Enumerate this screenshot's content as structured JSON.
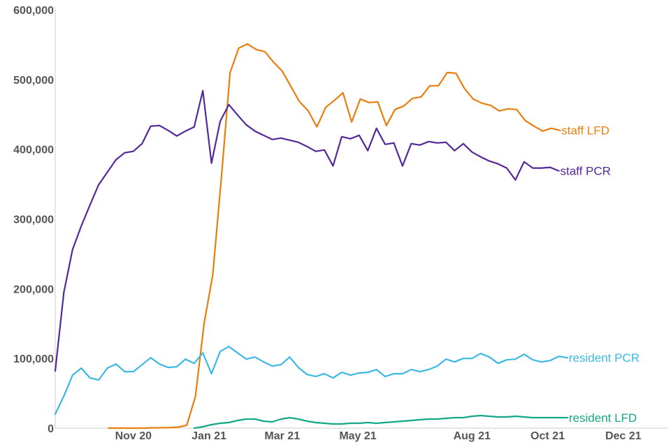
{
  "chart_data": {
    "type": "line",
    "title": "",
    "xlabel": "",
    "ylabel": "",
    "x_range": [
      "2020-08-30",
      "2021-12-31"
    ],
    "ylim": [
      0,
      600000
    ],
    "yticks": [
      {
        "value": 0,
        "label": "0"
      },
      {
        "value": 100000,
        "label": "100,000"
      },
      {
        "value": 200000,
        "label": "200,000"
      },
      {
        "value": 300000,
        "label": "300,000"
      },
      {
        "value": 400000,
        "label": "400,000"
      },
      {
        "value": 500000,
        "label": "500,000"
      },
      {
        "value": 600000,
        "label": "600,000"
      }
    ],
    "xticks": [
      {
        "date": "2020-11-01",
        "label": "Nov 20"
      },
      {
        "date": "2021-01-01",
        "label": "Jan 21"
      },
      {
        "date": "2021-03-01",
        "label": "Mar 21"
      },
      {
        "date": "2021-05-01",
        "label": "May 21"
      },
      {
        "date": "2021-08-01",
        "label": "Aug 21"
      },
      {
        "date": "2021-10-01",
        "label": "Oct 21"
      },
      {
        "date": "2021-12-01",
        "label": "Dec 21"
      }
    ],
    "grid": false,
    "legend": "direct-labels-at-line-ends",
    "series": [
      {
        "name": "staff LFD",
        "color": "#e87e0e",
        "x": [
          "2020-10-12",
          "2020-10-19",
          "2020-10-26",
          "2020-11-02",
          "2020-11-09",
          "2020-11-16",
          "2020-11-23",
          "2020-11-30",
          "2020-12-07",
          "2020-12-14",
          "2020-12-21",
          "2020-12-28",
          "2021-01-04",
          "2021-01-11",
          "2021-01-18",
          "2021-01-25",
          "2021-02-01",
          "2021-02-08",
          "2021-02-15",
          "2021-02-22",
          "2021-03-01",
          "2021-03-08",
          "2021-03-15",
          "2021-03-22",
          "2021-03-29",
          "2021-04-05",
          "2021-04-12",
          "2021-04-19",
          "2021-04-26",
          "2021-05-03",
          "2021-05-10",
          "2021-05-17",
          "2021-05-24",
          "2021-05-31",
          "2021-06-07",
          "2021-06-14",
          "2021-06-21",
          "2021-06-28",
          "2021-07-05",
          "2021-07-12",
          "2021-07-19",
          "2021-07-26",
          "2021-08-02",
          "2021-08-09",
          "2021-08-16",
          "2021-08-23",
          "2021-08-30",
          "2021-09-06",
          "2021-09-13",
          "2021-09-20",
          "2021-09-27",
          "2021-10-04",
          "2021-10-11"
        ],
        "values": [
          0,
          0,
          0,
          0,
          0,
          500,
          500,
          800,
          1500,
          4000,
          45000,
          150000,
          220000,
          360000,
          510000,
          545000,
          551000,
          543000,
          540000,
          525000,
          512000,
          490000,
          468000,
          455000,
          432000,
          460000,
          470000,
          481000,
          439000,
          472000,
          467000,
          468000,
          434000,
          457000,
          462000,
          473000,
          475000,
          491000,
          491000,
          510000,
          509000,
          487000,
          472000,
          466000,
          463000,
          455000,
          458000,
          457000,
          441000,
          433000,
          426000,
          430000,
          427000
        ]
      },
      {
        "name": "staff PCR",
        "color": "#55289a",
        "x": [
          "2020-08-30",
          "2020-09-06",
          "2020-09-13",
          "2020-09-20",
          "2020-09-27",
          "2020-10-04",
          "2020-10-11",
          "2020-10-18",
          "2020-10-25",
          "2020-11-01",
          "2020-11-08",
          "2020-11-15",
          "2020-11-22",
          "2020-11-29",
          "2020-12-06",
          "2020-12-13",
          "2020-12-20",
          "2020-12-27",
          "2021-01-03",
          "2021-01-10",
          "2021-01-17",
          "2021-01-24",
          "2021-01-31",
          "2021-02-07",
          "2021-02-14",
          "2021-02-21",
          "2021-02-28",
          "2021-03-07",
          "2021-03-14",
          "2021-03-21",
          "2021-03-28",
          "2021-04-04",
          "2021-04-11",
          "2021-04-18",
          "2021-04-25",
          "2021-05-02",
          "2021-05-09",
          "2021-05-16",
          "2021-05-23",
          "2021-05-30",
          "2021-06-06",
          "2021-06-13",
          "2021-06-20",
          "2021-06-27",
          "2021-07-04",
          "2021-07-11",
          "2021-07-18",
          "2021-07-25",
          "2021-08-01",
          "2021-08-08",
          "2021-08-15",
          "2021-08-22",
          "2021-08-29",
          "2021-09-05",
          "2021-09-12",
          "2021-09-19",
          "2021-09-26",
          "2021-10-03",
          "2021-10-10"
        ],
        "values": [
          82000,
          195000,
          256000,
          290000,
          320000,
          349000,
          367000,
          385000,
          395000,
          397000,
          408000,
          433000,
          434000,
          427000,
          419000,
          426000,
          432000,
          484000,
          380000,
          440000,
          464000,
          449000,
          435000,
          426000,
          420000,
          414000,
          416000,
          413000,
          410000,
          404000,
          397000,
          399000,
          376000,
          418000,
          415000,
          420000,
          398000,
          430000,
          407000,
          409000,
          376000,
          408000,
          406000,
          411000,
          409000,
          410000,
          398000,
          408000,
          396000,
          389000,
          383000,
          379000,
          373000,
          356000,
          382000,
          373000,
          373000,
          374000,
          369000
        ]
      },
      {
        "name": "resident PCR",
        "color": "#3db8e3",
        "x": [
          "2020-08-30",
          "2020-09-06",
          "2020-09-13",
          "2020-09-20",
          "2020-09-27",
          "2020-10-04",
          "2020-10-11",
          "2020-10-18",
          "2020-10-25",
          "2020-11-01",
          "2020-11-08",
          "2020-11-15",
          "2020-11-22",
          "2020-11-29",
          "2020-12-06",
          "2020-12-13",
          "2020-12-20",
          "2020-12-27",
          "2021-01-03",
          "2021-01-10",
          "2021-01-17",
          "2021-01-24",
          "2021-01-31",
          "2021-02-07",
          "2021-02-14",
          "2021-02-21",
          "2021-02-28",
          "2021-03-07",
          "2021-03-14",
          "2021-03-21",
          "2021-03-28",
          "2021-04-04",
          "2021-04-11",
          "2021-04-18",
          "2021-04-25",
          "2021-05-02",
          "2021-05-09",
          "2021-05-16",
          "2021-05-23",
          "2021-05-30",
          "2021-06-06",
          "2021-06-13",
          "2021-06-20",
          "2021-06-27",
          "2021-07-04",
          "2021-07-11",
          "2021-07-18",
          "2021-07-25",
          "2021-08-01",
          "2021-08-08",
          "2021-08-15",
          "2021-08-22",
          "2021-08-29",
          "2021-09-05",
          "2021-09-12",
          "2021-09-19",
          "2021-09-26",
          "2021-10-03",
          "2021-10-10",
          "2021-10-17"
        ],
        "values": [
          20000,
          46000,
          76000,
          86000,
          72000,
          69000,
          86000,
          92000,
          81000,
          81000,
          91000,
          101000,
          92000,
          87000,
          88000,
          99000,
          93000,
          108000,
          78000,
          110000,
          117000,
          108000,
          99000,
          102000,
          95000,
          89000,
          91000,
          102000,
          87000,
          77000,
          74000,
          78000,
          72000,
          80000,
          76000,
          79000,
          80000,
          84000,
          74000,
          78000,
          78000,
          84000,
          81000,
          84000,
          89000,
          99000,
          95000,
          100000,
          100000,
          107000,
          102000,
          93000,
          98000,
          99000,
          106000,
          98000,
          95000,
          97000,
          103000,
          101000
        ]
      },
      {
        "name": "resident LFD",
        "color": "#13a788",
        "x": [
          "2020-12-20",
          "2020-12-27",
          "2021-01-03",
          "2021-01-10",
          "2021-01-17",
          "2021-01-24",
          "2021-01-31",
          "2021-02-07",
          "2021-02-14",
          "2021-02-21",
          "2021-02-28",
          "2021-03-07",
          "2021-03-14",
          "2021-03-21",
          "2021-03-28",
          "2021-04-04",
          "2021-04-11",
          "2021-04-18",
          "2021-04-25",
          "2021-05-02",
          "2021-05-09",
          "2021-05-16",
          "2021-05-23",
          "2021-05-30",
          "2021-06-06",
          "2021-06-13",
          "2021-06-20",
          "2021-06-27",
          "2021-07-04",
          "2021-07-11",
          "2021-07-18",
          "2021-07-25",
          "2021-08-01",
          "2021-08-08",
          "2021-08-15",
          "2021-08-22",
          "2021-08-29",
          "2021-09-05",
          "2021-09-12",
          "2021-09-19",
          "2021-09-26",
          "2021-10-03",
          "2021-10-10",
          "2021-10-17"
        ],
        "values": [
          0,
          2000,
          5000,
          7000,
          8000,
          11000,
          13000,
          13000,
          10000,
          9000,
          13000,
          15000,
          13000,
          10000,
          8000,
          7000,
          6000,
          6000,
          7000,
          7000,
          8000,
          7000,
          8000,
          9000,
          10000,
          11000,
          12000,
          13000,
          13000,
          14000,
          15000,
          15000,
          17000,
          18000,
          17000,
          16000,
          16000,
          17000,
          16000,
          15000,
          15000,
          15000,
          15000,
          15000
        ]
      }
    ]
  }
}
